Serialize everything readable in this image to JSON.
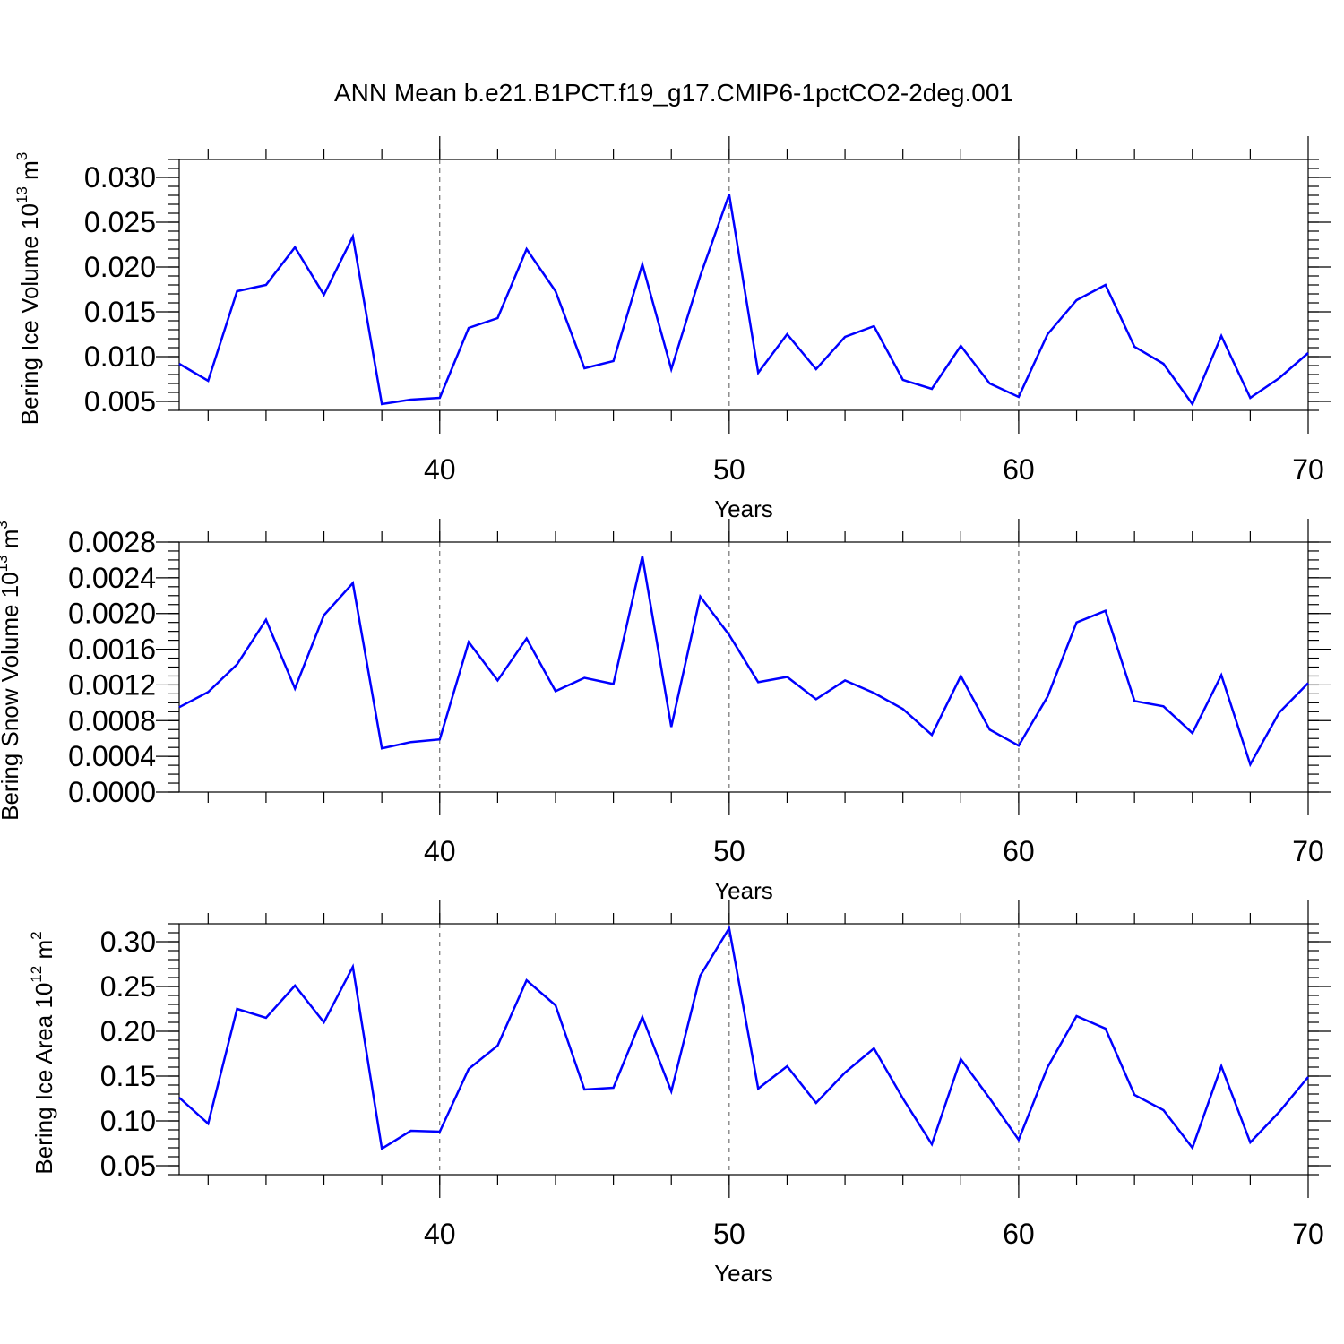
{
  "figure": {
    "title": "ANN Mean b.e21.B1PCT.f19_g17.CMIP6-1pctCO2-2deg.001"
  },
  "chart_data": [
    {
      "type": "line",
      "ylabel": "Bering Ice Volume 10",
      "ylabel_exp": "13",
      "ylabel_unit": " m",
      "ylabel_unit_exp": "3",
      "xlabel": "Years",
      "xlim": [
        31,
        70
      ],
      "ylim": [
        0.004,
        0.032
      ],
      "x_ticks": [
        40,
        50,
        60,
        70
      ],
      "x_tick_labels": [
        "40",
        "50",
        "60",
        "70"
      ],
      "y_ticks": [
        0.005,
        0.01,
        0.015,
        0.02,
        0.025,
        0.03
      ],
      "y_tick_labels": [
        "0.005",
        "0.010",
        "0.015",
        "0.020",
        "0.025",
        "0.030"
      ],
      "y_minor_step": 0.001,
      "grid": "x-major-dashed",
      "color": "#0000ff",
      "x": [
        31,
        32,
        33,
        34,
        35,
        36,
        37,
        38,
        39,
        40,
        41,
        42,
        43,
        44,
        45,
        46,
        47,
        48,
        49,
        50,
        51,
        52,
        53,
        54,
        55,
        56,
        57,
        58,
        59,
        60,
        61,
        62,
        63,
        64,
        65,
        66,
        67,
        68,
        69,
        70
      ],
      "values": [
        0.0092,
        0.0073,
        0.0173,
        0.018,
        0.0222,
        0.0169,
        0.0234,
        0.0047,
        0.0052,
        0.0054,
        0.0132,
        0.0143,
        0.022,
        0.0173,
        0.0087,
        0.0095,
        0.0203,
        0.0086,
        0.019,
        0.0281,
        0.0082,
        0.0125,
        0.0086,
        0.0122,
        0.0134,
        0.0074,
        0.0064,
        0.0112,
        0.007,
        0.0055,
        0.0125,
        0.0163,
        0.018,
        0.0111,
        0.0092,
        0.0047,
        0.0123,
        0.0054,
        0.0076,
        0.0104
      ]
    },
    {
      "type": "line",
      "ylabel": "Bering Snow Volume 10",
      "ylabel_exp": "13",
      "ylabel_unit": " m",
      "ylabel_unit_exp": "3",
      "xlabel": "Years",
      "xlim": [
        31,
        70
      ],
      "ylim": [
        0.0,
        0.0028
      ],
      "x_ticks": [
        40,
        50,
        60,
        70
      ],
      "x_tick_labels": [
        "40",
        "50",
        "60",
        "70"
      ],
      "y_ticks": [
        0.0,
        0.0004,
        0.0008,
        0.0012,
        0.0016,
        0.002,
        0.0024,
        0.0028
      ],
      "y_tick_labels": [
        "0.0000",
        "0.0004",
        "0.0008",
        "0.0012",
        "0.0016",
        "0.0020",
        "0.0024",
        "0.0028"
      ],
      "y_minor_step": 0.0001,
      "grid": "x-major-dashed",
      "color": "#0000ff",
      "x": [
        31,
        32,
        33,
        34,
        35,
        36,
        37,
        38,
        39,
        40,
        41,
        42,
        43,
        44,
        45,
        46,
        47,
        48,
        49,
        50,
        51,
        52,
        53,
        54,
        55,
        56,
        57,
        58,
        59,
        60,
        61,
        62,
        63,
        64,
        65,
        66,
        67,
        68,
        69,
        70
      ],
      "values": [
        0.00095,
        0.00112,
        0.00143,
        0.00193,
        0.00116,
        0.00198,
        0.00234,
        0.00049,
        0.00056,
        0.00059,
        0.00168,
        0.00125,
        0.00172,
        0.00113,
        0.00128,
        0.00121,
        0.00264,
        0.00073,
        0.00219,
        0.00176,
        0.00123,
        0.00129,
        0.00104,
        0.00125,
        0.00111,
        0.00093,
        0.00064,
        0.0013,
        0.0007,
        0.00052,
        0.00107,
        0.0019,
        0.00203,
        0.00102,
        0.00096,
        0.00066,
        0.00131,
        0.00031,
        0.00089,
        0.00122
      ]
    },
    {
      "type": "line",
      "ylabel": "Bering Ice Area 10",
      "ylabel_exp": "12",
      "ylabel_unit": " m",
      "ylabel_unit_exp": "2",
      "xlabel": "Years",
      "xlim": [
        31,
        70
      ],
      "ylim": [
        0.04,
        0.32
      ],
      "x_ticks": [
        40,
        50,
        60,
        70
      ],
      "x_tick_labels": [
        "40",
        "50",
        "60",
        "70"
      ],
      "y_ticks": [
        0.05,
        0.1,
        0.15,
        0.2,
        0.25,
        0.3
      ],
      "y_tick_labels": [
        "0.05",
        "0.10",
        "0.15",
        "0.20",
        "0.25",
        "0.30"
      ],
      "y_minor_step": 0.01,
      "grid": "x-major-dashed",
      "color": "#0000ff",
      "x": [
        31,
        32,
        33,
        34,
        35,
        36,
        37,
        38,
        39,
        40,
        41,
        42,
        43,
        44,
        45,
        46,
        47,
        48,
        49,
        50,
        51,
        52,
        53,
        54,
        55,
        56,
        57,
        58,
        59,
        60,
        61,
        62,
        63,
        64,
        65,
        66,
        67,
        68,
        69,
        70
      ],
      "values": [
        0.126,
        0.097,
        0.225,
        0.215,
        0.251,
        0.21,
        0.272,
        0.069,
        0.089,
        0.088,
        0.158,
        0.184,
        0.257,
        0.229,
        0.135,
        0.137,
        0.216,
        0.133,
        0.262,
        0.315,
        0.136,
        0.161,
        0.12,
        0.154,
        0.181,
        0.125,
        0.074,
        0.169,
        0.125,
        0.079,
        0.16,
        0.217,
        0.203,
        0.129,
        0.112,
        0.07,
        0.161,
        0.076,
        0.11,
        0.149
      ]
    }
  ]
}
